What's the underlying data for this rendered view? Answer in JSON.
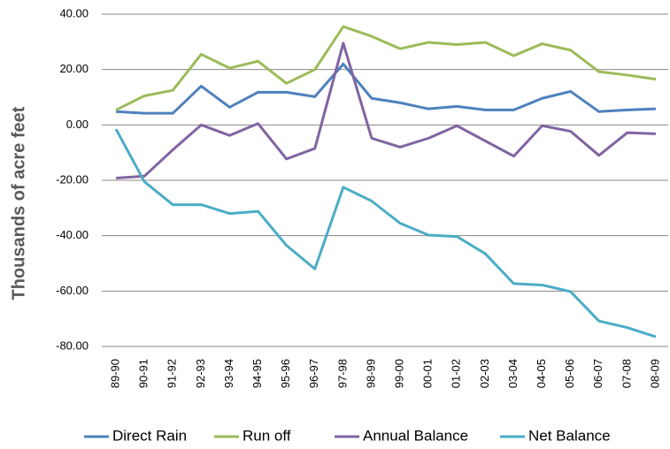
{
  "chart_data": {
    "type": "line",
    "y_label": "Thousands of acre feet",
    "categories": [
      "89-90",
      "90-91",
      "91-92",
      "92-93",
      "93-94",
      "94-95",
      "95-96",
      "96-97",
      "97-98",
      "98-99",
      "99-00",
      "00-01",
      "01-02",
      "02-03",
      "03-04",
      "04-05",
      "05-06",
      "06-07",
      "07-08",
      "08-09"
    ],
    "series": [
      {
        "name": "Direct Rain",
        "color": "#4f81bd",
        "values": [
          4.8,
          4.2,
          4.2,
          14,
          6.4,
          11.8,
          11.8,
          10.2,
          22,
          9.6,
          8,
          5.8,
          6.7,
          5.4,
          5.4,
          9.6,
          12.1,
          4.8,
          5.4,
          5.8
        ]
      },
      {
        "name": "Run off",
        "color": "#9bbb59",
        "values": [
          5.4,
          10.5,
          12.5,
          25.5,
          20.5,
          23,
          15,
          20,
          35.5,
          32,
          27.5,
          29.8,
          29,
          29.8,
          25,
          29.3,
          27,
          19.2,
          18,
          16.5
        ]
      },
      {
        "name": "Annual Balance",
        "color": "#8064a2",
        "values": [
          -19.2,
          -18.5,
          -9,
          0,
          -3.8,
          0.5,
          -12.3,
          -8.5,
          29.5,
          -4.8,
          -8,
          -4.8,
          -0.3,
          -5.8,
          -11.3,
          -0.3,
          -2.3,
          -11,
          -2.8,
          -3.2
        ]
      },
      {
        "name": "Net Balance",
        "color": "#4bacc6",
        "values": [
          -1.5,
          -20.5,
          -28.8,
          -28.8,
          -32,
          -31.2,
          -43.5,
          -52,
          -22.5,
          -27.5,
          -35.5,
          -39.8,
          -40.3,
          -46.5,
          -57.3,
          -57.8,
          -60.2,
          -70.8,
          -73.2,
          -76.5
        ]
      }
    ],
    "ylim": [
      -80,
      40
    ],
    "yticks": [
      {
        "value": 40,
        "label": "40.00"
      },
      {
        "value": 20,
        "label": "20.00"
      },
      {
        "value": 0,
        "label": "0.00"
      },
      {
        "value": -20,
        "label": "-20.00"
      },
      {
        "value": -40,
        "label": "-40.00"
      },
      {
        "value": -60,
        "label": "-60.00"
      },
      {
        "value": -80,
        "label": "-80.00"
      }
    ],
    "grid": true,
    "legend": "bottom"
  }
}
